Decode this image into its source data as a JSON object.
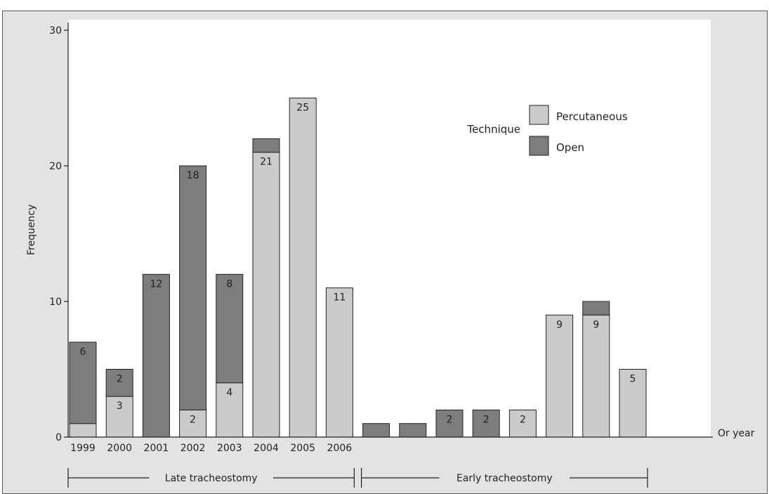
{
  "chart_data": {
    "type": "bar",
    "stacked": true,
    "ylabel": "Frequency",
    "xlabel": "Or year",
    "ylim": [
      0,
      30
    ],
    "yticks": [
      0,
      10,
      20,
      30
    ],
    "categories": [
      "1999",
      "2000",
      "2001",
      "2002",
      "2003",
      "2004",
      "2005",
      "2006",
      "",
      "",
      "",
      "",
      "",
      "",
      "",
      ""
    ],
    "groups": [
      {
        "label": "Late tracheostomy",
        "start": 0,
        "end": 7
      },
      {
        "label": "Early tracheostomy",
        "start": 8,
        "end": 15
      }
    ],
    "legend": {
      "title": "Technique",
      "position": "top-right",
      "entries": [
        {
          "name": "Percutaneous",
          "color": "#cbcbcb"
        },
        {
          "name": "Open",
          "color": "#7d7d7d"
        }
      ]
    },
    "series": [
      {
        "name": "Percutaneous",
        "color": "#cbcbcb",
        "values": [
          1,
          3,
          0,
          2,
          4,
          21,
          25,
          11,
          0,
          0,
          0,
          0,
          2,
          9,
          9,
          5
        ],
        "labels": [
          "",
          "3",
          "",
          "2",
          "4",
          "21",
          "25",
          "11",
          "",
          "",
          "",
          "",
          "2",
          "9",
          "9",
          "5"
        ]
      },
      {
        "name": "Open",
        "color": "#7d7d7d",
        "values": [
          6,
          2,
          12,
          18,
          8,
          1,
          0,
          0,
          1,
          1,
          2,
          2,
          0,
          0,
          1,
          0
        ],
        "labels": [
          "6",
          "2",
          "12",
          "18",
          "8",
          "",
          "",
          "",
          "",
          "",
          "2",
          "2",
          "",
          "",
          "",
          ""
        ]
      }
    ]
  }
}
